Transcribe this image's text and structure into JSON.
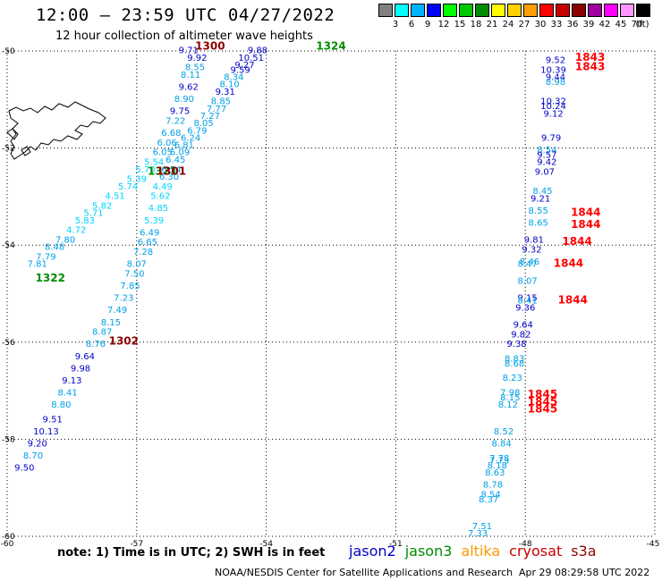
{
  "header": {
    "title": "12:00 – 23:59 UTC 04/27/2022",
    "subtitle": "12 hour collection of altimeter wave heights"
  },
  "colorscale": {
    "unit": "(ft)",
    "steps": [
      {
        "label": "3",
        "color": "#808080"
      },
      {
        "label": "6",
        "color": "#00ffff"
      },
      {
        "label": "9",
        "color": "#00b4ff"
      },
      {
        "label": "12",
        "color": "#0000ff"
      },
      {
        "label": "15",
        "color": "#00ff00"
      },
      {
        "label": "18",
        "color": "#00c800"
      },
      {
        "label": "21",
        "color": "#008c00"
      },
      {
        "label": "24",
        "color": "#ffff00"
      },
      {
        "label": "27",
        "color": "#ffd200"
      },
      {
        "label": "30",
        "color": "#ffa000"
      },
      {
        "label": "33",
        "color": "#ff0000"
      },
      {
        "label": "36",
        "color": "#c80000"
      },
      {
        "label": "39",
        "color": "#8c0000"
      },
      {
        "label": "42",
        "color": "#a000a0"
      },
      {
        "label": "45",
        "color": "#ff00ff"
      },
      {
        "label": "70",
        "color": "#ff96ff"
      },
      {
        "label": "",
        "color": "#000000"
      }
    ]
  },
  "axes": {
    "lat_labels": [
      "-50",
      "-52",
      "-54",
      "-56",
      "-58",
      "-60"
    ],
    "lon_labels": [
      "-60",
      "-57",
      "-54",
      "-51",
      "-48",
      "-45"
    ]
  },
  "footer": {
    "note": "note:  1) Time is in UTC;  2) SWH is in feet",
    "satellites": [
      {
        "name": "jason2",
        "color": "#0000c8"
      },
      {
        "name": "jason3",
        "color": "#008c00"
      },
      {
        "name": "altika",
        "color": "#ff9600"
      },
      {
        "name": "cryosat",
        "color": "#c80000"
      },
      {
        "name": "s3a",
        "color": "#8c0000"
      }
    ],
    "credit": "NOAA/NESDIS Center for Satellite Applications and Research",
    "timestamp": "Apr 29 08:29:58 UTC 2022"
  },
  "tracks": [
    {
      "name": "track-1300",
      "color": "#000099",
      "points": [
        [
          -55.8,
          -50.05,
          "9.71"
        ],
        [
          -55.6,
          -50.2,
          "9.92"
        ],
        [
          -55.65,
          -50.4,
          "8.55"
        ],
        [
          -55.75,
          -50.55,
          "8.11"
        ],
        [
          -55.8,
          -50.8,
          "9.62"
        ],
        [
          -55.9,
          -51.05,
          "8.90"
        ],
        [
          -56.0,
          -51.3,
          "9.75"
        ],
        [
          -56.1,
          -51.5,
          "7.22"
        ],
        [
          -56.2,
          -51.75,
          "6.68"
        ],
        [
          -56.3,
          -51.95,
          "6.06"
        ],
        [
          -56.4,
          -52.15,
          "6.05"
        ],
        [
          -56.6,
          -52.35,
          "5.54"
        ],
        [
          -56.8,
          -52.5,
          "5.70"
        ],
        [
          -57.0,
          -52.7,
          "5.39"
        ],
        [
          -57.2,
          -52.85,
          "5.74"
        ],
        [
          -57.5,
          -53.05,
          "4.51"
        ],
        [
          -57.8,
          -53.25,
          "5.82"
        ],
        [
          -58.0,
          -53.4,
          "5.71"
        ],
        [
          -58.2,
          -53.55,
          "5.83"
        ],
        [
          -58.4,
          -53.75,
          "4.72"
        ],
        [
          -58.65,
          -53.95,
          "7.80"
        ],
        [
          -58.9,
          -54.1,
          "8.48"
        ],
        [
          -59.1,
          -54.3,
          "7.79"
        ],
        [
          -59.3,
          -54.45,
          "7.81"
        ]
      ]
    },
    {
      "name": "track-1300b",
      "color": "#000099",
      "points": [
        [
          -54.2,
          -50.05,
          "9.88"
        ],
        [
          -54.35,
          -50.2,
          "10.51"
        ],
        [
          -54.5,
          -50.35,
          "9.27"
        ],
        [
          -54.6,
          -50.45,
          "9.59"
        ],
        [
          -54.75,
          -50.6,
          "8.34"
        ],
        [
          -54.85,
          -50.75,
          "8.10"
        ],
        [
          -54.95,
          -50.9,
          "9.31"
        ],
        [
          -55.05,
          -51.1,
          "8.85"
        ],
        [
          -55.15,
          -51.25,
          "7.77"
        ],
        [
          -55.3,
          -51.4,
          "7.27"
        ],
        [
          -55.45,
          -51.55,
          "8.05"
        ],
        [
          -55.6,
          -51.7,
          "6.79"
        ],
        [
          -55.75,
          -51.85,
          "6.24"
        ],
        [
          -55.9,
          -52.0,
          "6.81"
        ],
        [
          -56.0,
          -52.15,
          "6.09"
        ],
        [
          -56.1,
          -52.3,
          "6.45"
        ],
        [
          -56.2,
          -52.5,
          "6.54"
        ],
        [
          -56.25,
          -52.65,
          "6.30"
        ],
        [
          -56.4,
          -52.85,
          "4.49"
        ],
        [
          -56.45,
          -53.05,
          "5.62"
        ],
        [
          -56.5,
          -53.3,
          "4.85"
        ],
        [
          -56.6,
          -53.55,
          "5.39"
        ],
        [
          -56.7,
          -53.8,
          "6.49"
        ],
        [
          -56.75,
          -54.0,
          "6.65"
        ],
        [
          -56.85,
          -54.2,
          "7.28"
        ],
        [
          -57.0,
          -54.45,
          "8.07"
        ],
        [
          -57.05,
          -54.65,
          "7.50"
        ],
        [
          -57.15,
          -54.9,
          "7.85"
        ],
        [
          -57.3,
          -55.15,
          "7.23"
        ],
        [
          -57.45,
          -55.4,
          "7.49"
        ],
        [
          -57.6,
          -55.65,
          "8.15"
        ],
        [
          -57.8,
          -55.85,
          "8.87"
        ],
        [
          -57.95,
          -56.1,
          "8.76"
        ],
        [
          -58.2,
          -56.35,
          "9.64"
        ],
        [
          -58.3,
          -56.6,
          "9.98"
        ],
        [
          -58.5,
          -56.85,
          "9.13"
        ],
        [
          -58.6,
          -57.1,
          "8.41"
        ],
        [
          -58.75,
          -57.35,
          "8.80"
        ],
        [
          -58.95,
          -57.65,
          "9.51"
        ],
        [
          -59.1,
          -57.9,
          "10.13"
        ],
        [
          -59.3,
          -58.15,
          "9.20"
        ],
        [
          -59.4,
          -58.4,
          "8.70"
        ],
        [
          -59.6,
          -58.65,
          "9.50"
        ]
      ]
    },
    {
      "name": "track-east",
      "color": "#000099",
      "points": [
        [
          -47.3,
          -50.25,
          "9.52"
        ],
        [
          -47.35,
          -50.45,
          "10.39"
        ],
        [
          -47.3,
          -50.6,
          "9.44"
        ],
        [
          -47.3,
          -50.7,
          "8.98"
        ],
        [
          -47.35,
          -51.1,
          "10.32"
        ],
        [
          -47.35,
          -51.2,
          "10.24"
        ],
        [
          -47.35,
          -51.35,
          "9.12"
        ],
        [
          -47.4,
          -51.85,
          "9.79"
        ],
        [
          -47.5,
          -52.1,
          "8.54"
        ],
        [
          -47.5,
          -52.2,
          "9.57"
        ],
        [
          -47.5,
          -52.35,
          "9.42"
        ],
        [
          -47.55,
          -52.55,
          "9.07"
        ],
        [
          -47.6,
          -52.95,
          "8.45"
        ],
        [
          -47.65,
          -53.1,
          "9.21"
        ],
        [
          -47.7,
          -53.35,
          "8.55"
        ],
        [
          -47.7,
          -53.6,
          "8.65"
        ],
        [
          -47.8,
          -53.95,
          "9.81"
        ],
        [
          -47.85,
          -54.15,
          "9.32"
        ],
        [
          -47.9,
          -54.4,
          "8.46"
        ],
        [
          -47.95,
          -54.45,
          "8.47"
        ],
        [
          -47.95,
          -54.8,
          "8.07"
        ],
        [
          -47.95,
          -55.15,
          "9.15"
        ],
        [
          -47.95,
          -55.2,
          "8.41"
        ],
        [
          -48.0,
          -55.35,
          "9.36"
        ],
        [
          -48.05,
          -55.7,
          "9.64"
        ],
        [
          -48.1,
          -55.9,
          "9.82"
        ],
        [
          -48.2,
          -56.1,
          "9.38"
        ],
        [
          -48.25,
          -56.4,
          "8.83"
        ],
        [
          -48.25,
          -56.5,
          "8.68"
        ],
        [
          -48.3,
          -56.8,
          "8.23"
        ],
        [
          -48.35,
          -57.1,
          "7.98"
        ],
        [
          -48.35,
          -57.2,
          "8.15"
        ],
        [
          -48.4,
          -57.35,
          "8.12"
        ],
        [
          -48.5,
          -57.9,
          "8.52"
        ],
        [
          -48.55,
          -58.15,
          "8.84"
        ],
        [
          -48.6,
          -58.45,
          "7.78"
        ],
        [
          -48.6,
          -58.5,
          "7.73"
        ],
        [
          -48.65,
          -58.6,
          "8.18"
        ],
        [
          -48.7,
          -58.75,
          "8.63"
        ],
        [
          -48.75,
          -59.0,
          "8.78"
        ],
        [
          -48.8,
          -59.2,
          "8.54"
        ],
        [
          -48.85,
          -59.3,
          "8.37"
        ],
        [
          -49.0,
          -59.85,
          "7.51"
        ],
        [
          -49.1,
          -60.0,
          "7.33"
        ]
      ]
    }
  ],
  "pass_labels": [
    {
      "lon": -55.3,
      "lat": -49.97,
      "text": "1300",
      "color": "#8c0000"
    },
    {
      "lon": -52.5,
      "lat": -49.97,
      "text": "1324",
      "color": "#008c00"
    },
    {
      "lon": -56.4,
      "lat": -52.55,
      "text": "1321",
      "color": "#008c00"
    },
    {
      "lon": -56.2,
      "lat": -52.55,
      "text": "1301",
      "color": "#8c0000"
    },
    {
      "lon": -59.0,
      "lat": -54.75,
      "text": "1322",
      "color": "#008c00"
    },
    {
      "lon": -57.3,
      "lat": -56.05,
      "text": "1302",
      "color": "#8c0000"
    },
    {
      "lon": -46.5,
      "lat": -50.2,
      "text": "1843",
      "color": "#ff0000"
    },
    {
      "lon": -46.5,
      "lat": -50.4,
      "text": "1843",
      "color": "#ff0000"
    },
    {
      "lon": -46.6,
      "lat": -53.4,
      "text": "1844",
      "color": "#ff0000"
    },
    {
      "lon": -46.6,
      "lat": -53.65,
      "text": "1844",
      "color": "#ff0000"
    },
    {
      "lon": -46.8,
      "lat": -54.0,
      "text": "1844",
      "color": "#ff0000"
    },
    {
      "lon": -47.0,
      "lat": -54.45,
      "text": "1844",
      "color": "#ff0000"
    },
    {
      "lon": -46.9,
      "lat": -55.2,
      "text": "1844",
      "color": "#ff0000"
    },
    {
      "lon": -47.6,
      "lat": -57.15,
      "text": "1845",
      "color": "#ff0000"
    },
    {
      "lon": -47.6,
      "lat": -57.3,
      "text": "1845",
      "color": "#ff0000"
    },
    {
      "lon": -47.6,
      "lat": -57.45,
      "text": "1845",
      "color": "#ff0000"
    }
  ]
}
